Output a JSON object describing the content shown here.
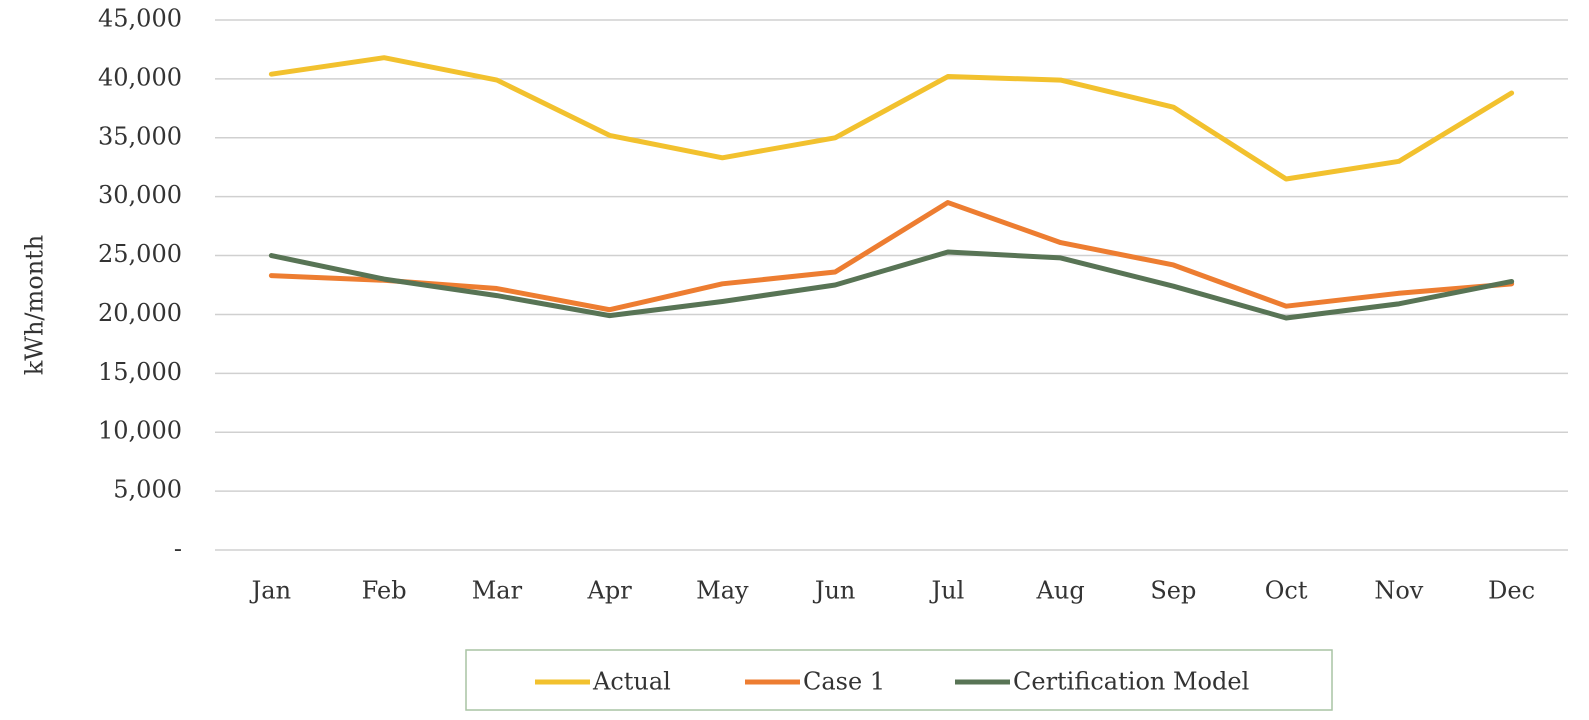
{
  "chart_data": {
    "type": "line",
    "ylabel": "kWh/month",
    "categories": [
      "Jan",
      "Feb",
      "Mar",
      "Apr",
      "May",
      "Jun",
      "Jul",
      "Aug",
      "Sep",
      "Oct",
      "Nov",
      "Dec"
    ],
    "series": [
      {
        "name": "Actual",
        "color": "#f2c12e",
        "values": [
          40400,
          41800,
          39900,
          35200,
          33300,
          35000,
          40200,
          39900,
          37600,
          31500,
          33000,
          38800
        ]
      },
      {
        "name": "Case 1",
        "color": "#ed7d31",
        "values": [
          23300,
          22900,
          22200,
          20400,
          22600,
          23600,
          29500,
          26100,
          24200,
          20700,
          21800,
          22600
        ]
      },
      {
        "name": "Certification Model",
        "color": "#587455",
        "values": [
          25000,
          23000,
          21600,
          19900,
          21100,
          22500,
          25300,
          24800,
          22400,
          19700,
          20900,
          22800
        ]
      }
    ],
    "ylim": [
      0,
      45000
    ],
    "yticks": [
      {
        "value": 0,
        "label": "-"
      },
      {
        "value": 5000,
        "label": "5,000"
      },
      {
        "value": 10000,
        "label": "10,000"
      },
      {
        "value": 15000,
        "label": "15,000"
      },
      {
        "value": 20000,
        "label": "20,000"
      },
      {
        "value": 25000,
        "label": "25,000"
      },
      {
        "value": 30000,
        "label": "30,000"
      },
      {
        "value": 35000,
        "label": "35,000"
      },
      {
        "value": 40000,
        "label": "40,000"
      },
      {
        "value": 45000,
        "label": "45,000"
      }
    ],
    "grid": true,
    "legend": "bottom"
  }
}
